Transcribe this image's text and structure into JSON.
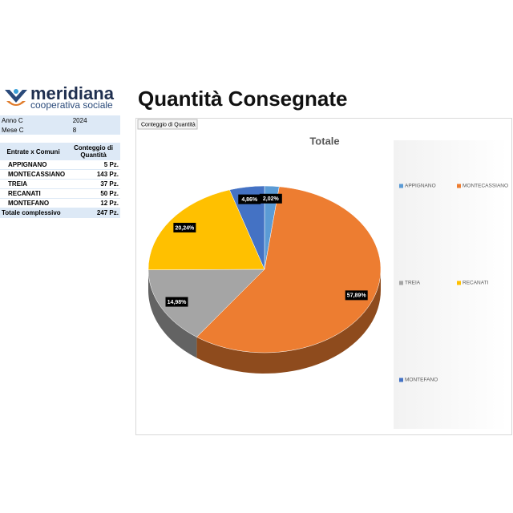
{
  "logo": {
    "name": "meridiana",
    "tagline": "cooperativa sociale"
  },
  "title": "Quantità Consegnate",
  "filters": [
    [
      "Anno C",
      "2024"
    ],
    [
      "Mese C",
      "8"
    ]
  ],
  "table": {
    "header": [
      "Entrate x Comuni",
      "Conteggio di Quantità"
    ],
    "rows": [
      [
        "APPIGNANO",
        "5 Pz."
      ],
      [
        "MONTECASSIANO",
        "143 Pz."
      ],
      [
        "TREIA",
        "37 Pz."
      ],
      [
        "RECANATI",
        "50 Pz."
      ],
      [
        "MONTEFANO",
        "12 Pz."
      ]
    ],
    "total": [
      "Totale complessivo",
      "247 Pz."
    ]
  },
  "chart_data": {
    "type": "pie",
    "button": "Conteggio di Quantità",
    "title": "Totale",
    "categories": [
      "APPIGNANO",
      "MONTECASSIANO",
      "TREIA",
      "RECANATI",
      "MONTEFANO"
    ],
    "values": [
      2.02,
      57.89,
      14.98,
      20.24,
      4.86
    ],
    "value_labels": [
      "2,02%",
      "57,89%",
      "14,98%",
      "20,24%",
      "4,86%"
    ],
    "colors": [
      "#5b9bd5",
      "#ed7d31",
      "#a5a5a5",
      "#ffc000",
      "#4472c4"
    ],
    "legend": "right"
  }
}
